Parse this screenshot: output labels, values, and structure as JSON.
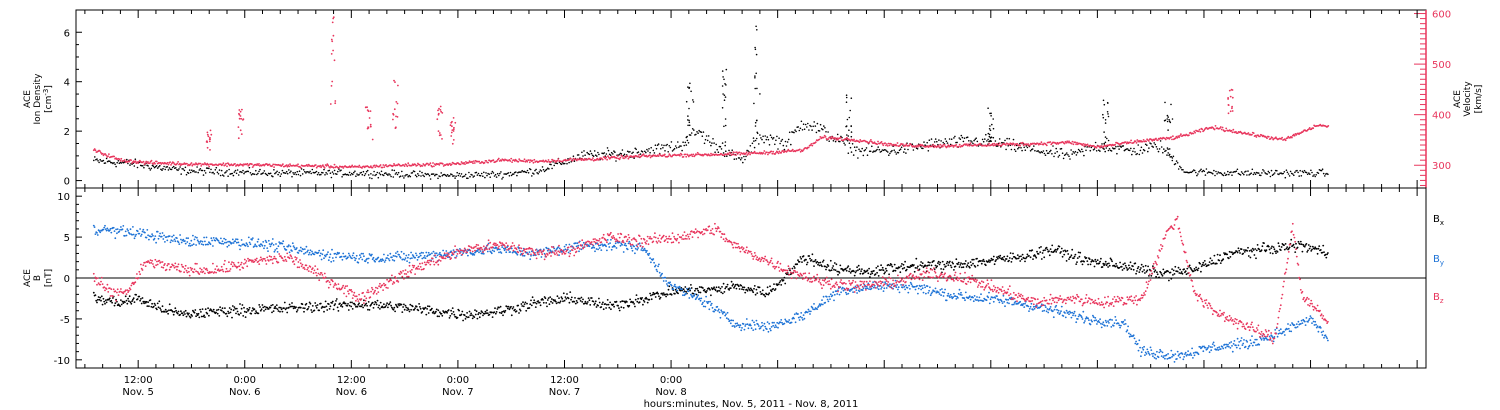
{
  "chart_data": [
    {
      "type": "scatter",
      "panel": "top",
      "ylabel_left": [
        "ACE",
        "Ion Density",
        "[cm",
        "-3",
        "]"
      ],
      "ylabel_right": [
        "ACE",
        "Velocity",
        "[km/s]"
      ],
      "ylim_left": [
        -0.3,
        6.9
      ],
      "ylim_right": [
        255,
        607
      ],
      "left_ticks": [
        "0",
        "2",
        "4",
        "6"
      ],
      "left_tick_values": [
        0,
        2,
        4,
        6
      ],
      "right_ticks": [
        "300",
        "400",
        "500",
        "600"
      ],
      "right_tick_values": [
        300,
        400,
        500,
        600
      ],
      "colors": {
        "density": "#000000",
        "velocity": "#e8365d",
        "right_axis": "#e8365d"
      },
      "density_baseline": [
        [
          0,
          0.8
        ],
        [
          4,
          0.7
        ],
        [
          10,
          0.4
        ],
        [
          20,
          0.3
        ],
        [
          30,
          0.3
        ],
        [
          40,
          0.2
        ],
        [
          46,
          0.25
        ],
        [
          50,
          0.4
        ],
        [
          55,
          1.0
        ],
        [
          60,
          1.1
        ],
        [
          64,
          1.3
        ],
        [
          66,
          1.4
        ],
        [
          68,
          2.0
        ],
        [
          70,
          1.4
        ],
        [
          73,
          0.8
        ],
        [
          75,
          1.8
        ],
        [
          78,
          1.5
        ],
        [
          80,
          2.4
        ],
        [
          84,
          1.6
        ],
        [
          86,
          1.2
        ],
        [
          90,
          1.2
        ],
        [
          95,
          1.5
        ],
        [
          100,
          1.6
        ],
        [
          105,
          1.3
        ],
        [
          110,
          1.0
        ],
        [
          113,
          1.4
        ],
        [
          117,
          1.2
        ],
        [
          120,
          1.4
        ],
        [
          123,
          0.35
        ],
        [
          130,
          0.3
        ],
        [
          136,
          0.3
        ],
        [
          139,
          0.3
        ]
      ],
      "density_spikes": [
        [
          67,
          4.0
        ],
        [
          71,
          4.5
        ],
        [
          74.5,
          6.6
        ],
        [
          85,
          3.5
        ],
        [
          101,
          3.0
        ],
        [
          114,
          3.3
        ],
        [
          121,
          3.3
        ]
      ],
      "velocity_baseline": [
        [
          0,
          330
        ],
        [
          3,
          310
        ],
        [
          6,
          305
        ],
        [
          12,
          302
        ],
        [
          20,
          300
        ],
        [
          26,
          298
        ],
        [
          30,
          296
        ],
        [
          34,
          300
        ],
        [
          40,
          302
        ],
        [
          46,
          310
        ],
        [
          50,
          308
        ],
        [
          56,
          312
        ],
        [
          62,
          318
        ],
        [
          66,
          320
        ],
        [
          72,
          322
        ],
        [
          76,
          325
        ],
        [
          80,
          330
        ],
        [
          82,
          355
        ],
        [
          86,
          350
        ],
        [
          90,
          340
        ],
        [
          95,
          338
        ],
        [
          100,
          340
        ],
        [
          105,
          342
        ],
        [
          110,
          345
        ],
        [
          113,
          336
        ],
        [
          118,
          348
        ],
        [
          122,
          355
        ],
        [
          126,
          375
        ],
        [
          130,
          362
        ],
        [
          134,
          350
        ],
        [
          138,
          380
        ],
        [
          139,
          375
        ]
      ],
      "velocity_spikes": [
        [
          13,
          370
        ],
        [
          16.5,
          410
        ],
        [
          27,
          600
        ],
        [
          31,
          420
        ],
        [
          34,
          480
        ],
        [
          39,
          420
        ],
        [
          40.5,
          400
        ],
        [
          128,
          450
        ]
      ],
      "x_span_hours": [
        0,
        139
      ],
      "x_axis_hours_range": [
        -2,
        150
      ]
    },
    {
      "type": "scatter",
      "panel": "bottom",
      "ylabel": [
        "ACE",
        "B",
        "[nT]"
      ],
      "ylim": [
        -11,
        11
      ],
      "ticks": [
        "-10",
        "-5",
        "0",
        "5",
        "10"
      ],
      "tick_values": [
        -10,
        -5,
        0,
        5,
        10
      ],
      "zero_line": true,
      "series": [
        {
          "name": "B",
          "subscript": "x",
          "color": "#000000",
          "points": [
            [
              0,
              -2.5
            ],
            [
              3,
              -3.0
            ],
            [
              5,
              -2.5
            ],
            [
              7,
              -3.5
            ],
            [
              10,
              -4.5
            ],
            [
              15,
              -4.0
            ],
            [
              20,
              -3.8
            ],
            [
              25,
              -3.5
            ],
            [
              30,
              -3.2
            ],
            [
              34,
              -3.5
            ],
            [
              38,
              -4.0
            ],
            [
              42,
              -4.5
            ],
            [
              46,
              -4.0
            ],
            [
              50,
              -3.0
            ],
            [
              54,
              -2.5
            ],
            [
              58,
              -3.5
            ],
            [
              62,
              -2.5
            ],
            [
              66,
              -1.5
            ],
            [
              70,
              -1.5
            ],
            [
              72,
              -1.0
            ],
            [
              76,
              -1.8
            ],
            [
              80,
              2.5
            ],
            [
              84,
              1.0
            ],
            [
              88,
              0.8
            ],
            [
              92,
              1.5
            ],
            [
              96,
              1.5
            ],
            [
              100,
              2.0
            ],
            [
              104,
              2.5
            ],
            [
              108,
              3.5
            ],
            [
              112,
              2.0
            ],
            [
              116,
              1.5
            ],
            [
              120,
              0.5
            ],
            [
              124,
              1.0
            ],
            [
              128,
              3.0
            ],
            [
              132,
              3.5
            ],
            [
              136,
              4.0
            ],
            [
              139,
              3.0
            ]
          ]
        },
        {
          "name": "B",
          "subscript": "y",
          "color": "#1e73d6",
          "points": [
            [
              0,
              6.0
            ],
            [
              5,
              5.5
            ],
            [
              10,
              4.5
            ],
            [
              15,
              4.5
            ],
            [
              20,
              4.0
            ],
            [
              25,
              3.0
            ],
            [
              30,
              2.5
            ],
            [
              35,
              2.5
            ],
            [
              40,
              3.0
            ],
            [
              45,
              3.5
            ],
            [
              50,
              3.0
            ],
            [
              55,
              4.0
            ],
            [
              60,
              4.0
            ],
            [
              62,
              3.5
            ],
            [
              65,
              -1.0
            ],
            [
              69,
              -3.0
            ],
            [
              72,
              -5.5
            ],
            [
              76,
              -6.0
            ],
            [
              80,
              -4.5
            ],
            [
              84,
              -1.5
            ],
            [
              88,
              -1.0
            ],
            [
              92,
              -1.0
            ],
            [
              96,
              -2.0
            ],
            [
              100,
              -2.5
            ],
            [
              104,
              -3.0
            ],
            [
              108,
              -4.0
            ],
            [
              112,
              -5.0
            ],
            [
              116,
              -5.5
            ],
            [
              118,
              -9.0
            ],
            [
              122,
              -9.5
            ],
            [
              126,
              -8.5
            ],
            [
              130,
              -8.0
            ],
            [
              134,
              -6.5
            ],
            [
              137,
              -5.0
            ],
            [
              139,
              -7.5
            ]
          ]
        },
        {
          "name": "B",
          "subscript": "z",
          "color": "#e8365d",
          "points": [
            [
              0,
              0.0
            ],
            [
              2,
              -2.0
            ],
            [
              4,
              -1.5
            ],
            [
              6,
              2.0
            ],
            [
              8,
              1.5
            ],
            [
              10,
              1.0
            ],
            [
              14,
              1.0
            ],
            [
              18,
              2.0
            ],
            [
              22,
              2.5
            ],
            [
              26,
              0.0
            ],
            [
              30,
              -2.5
            ],
            [
              34,
              0.0
            ],
            [
              38,
              2.0
            ],
            [
              42,
              3.5
            ],
            [
              46,
              4.0
            ],
            [
              50,
              3.0
            ],
            [
              54,
              3.5
            ],
            [
              58,
              5.0
            ],
            [
              62,
              4.5
            ],
            [
              66,
              5.0
            ],
            [
              70,
              6.0
            ],
            [
              72,
              4.0
            ],
            [
              74,
              3.0
            ],
            [
              78,
              1.0
            ],
            [
              82,
              -0.5
            ],
            [
              86,
              -1.0
            ],
            [
              90,
              -0.5
            ],
            [
              94,
              0.5
            ],
            [
              98,
              0.0
            ],
            [
              102,
              -1.5
            ],
            [
              106,
              -3.0
            ],
            [
              110,
              -2.5
            ],
            [
              114,
              -3.0
            ],
            [
              118,
              -2.5
            ],
            [
              121,
              6.0
            ],
            [
              122,
              7.0
            ],
            [
              124,
              -2.0
            ],
            [
              126,
              -4.0
            ],
            [
              128,
              -5.0
            ],
            [
              130,
              -6.0
            ],
            [
              133,
              -7.5
            ],
            [
              135,
              6.5
            ],
            [
              136,
              -2.0
            ],
            [
              139,
              -5.5
            ]
          ]
        }
      ]
    }
  ],
  "x_axis": {
    "ticks": [
      {
        "time": "12:00",
        "day": "Nov. 5"
      },
      {
        "time": "0:00",
        "day": "Nov. 6"
      },
      {
        "time": "12:00",
        "day": "Nov. 6"
      },
      {
        "time": "0:00",
        "day": "Nov. 7"
      },
      {
        "time": "12:00",
        "day": "Nov. 7"
      },
      {
        "time": "0:00",
        "day": "Nov. 8"
      }
    ],
    "tick_hours": [
      12,
      24,
      36,
      48,
      60,
      72
    ],
    "hours_offset": 7,
    "title": "hours:minutes, Nov.  5, 2011 - Nov.  8, 2011"
  }
}
